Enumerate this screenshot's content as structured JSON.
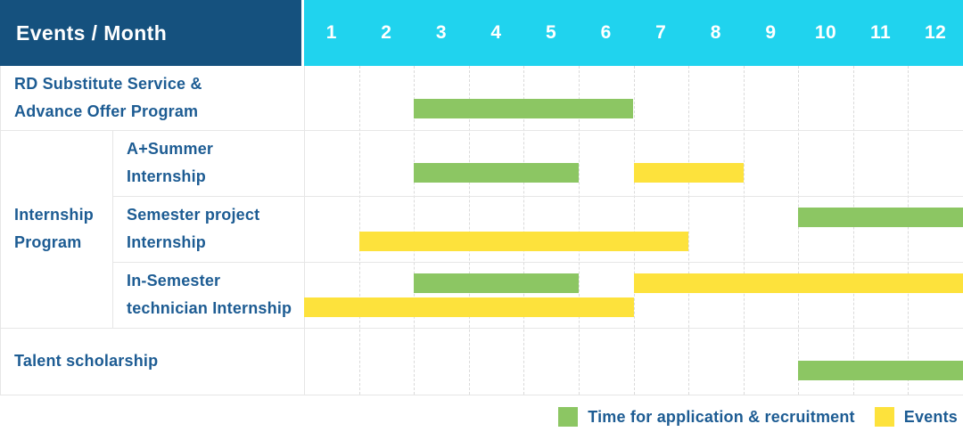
{
  "colors": {
    "header_navy": "#15517E",
    "header_cyan": "#20D3EE",
    "recruitment_green": "#8CC663",
    "event_yellow": "#FDE23C",
    "label_blue": "#1D5C93",
    "grid_gray": "#E6E6E6"
  },
  "header": {
    "title": "Events / Month",
    "months": [
      "1",
      "2",
      "3",
      "4",
      "5",
      "6",
      "7",
      "8",
      "9",
      "10",
      "11",
      "12"
    ]
  },
  "rows": [
    {
      "id": "rd-substitute-service",
      "group": null,
      "label_lines": [
        "RD Substitute Service &",
        "Advance Offer Program"
      ],
      "bars": [
        {
          "type": "recruitment",
          "start_month": 3,
          "end_month": 6,
          "band": "mid"
        }
      ]
    },
    {
      "id": "a-plus-summer-internship",
      "group": "Internship Program",
      "label_lines": [
        "A+Summer",
        "Internship"
      ],
      "bars": [
        {
          "type": "recruitment",
          "start_month": 3,
          "end_month": 5,
          "band": "mid"
        },
        {
          "type": "event",
          "start_month": 7,
          "end_month": 8,
          "band": "mid"
        }
      ]
    },
    {
      "id": "semester-project-internship",
      "group": "Internship Program",
      "label_lines": [
        "Semester project",
        "Internship"
      ],
      "bars": [
        {
          "type": "recruitment",
          "start_month": 10,
          "end_month": 12,
          "band": "top"
        },
        {
          "type": "event",
          "start_month": 2,
          "end_month": 7,
          "band": "bottom"
        }
      ]
    },
    {
      "id": "in-semester-technician-internship",
      "group": "Internship Program",
      "label_lines": [
        "In-Semester",
        "technician Internship"
      ],
      "bars": [
        {
          "type": "recruitment",
          "start_month": 3,
          "end_month": 5,
          "band": "top"
        },
        {
          "type": "event",
          "start_month": 7,
          "end_month": 12,
          "band": "top"
        },
        {
          "type": "event",
          "start_month": 1,
          "end_month": 6,
          "band": "bottom"
        }
      ]
    },
    {
      "id": "talent-scholarship",
      "group": null,
      "label_lines": [
        "Talent scholarship"
      ],
      "bars": [
        {
          "type": "recruitment",
          "start_month": 10,
          "end_month": 12,
          "band": "mid"
        }
      ]
    }
  ],
  "legend": {
    "items": [
      {
        "id": "recruitment",
        "label": "Time for application & recruitment",
        "color": "#8CC663"
      },
      {
        "id": "events",
        "label": "Events",
        "color": "#FDE23C"
      }
    ]
  },
  "chart_data": {
    "type": "bar",
    "subtype": "gantt",
    "title": "Events / Month",
    "xlabel": "Month",
    "x_ticks": [
      1,
      2,
      3,
      4,
      5,
      6,
      7,
      8,
      9,
      10,
      11,
      12
    ],
    "xlim": [
      1,
      12
    ],
    "grid": "vertical-dashed",
    "legend_position": "bottom-right",
    "legend": [
      {
        "label": "Time for application & recruitment",
        "color": "#8CC663"
      },
      {
        "label": "Events",
        "color": "#FDE23C"
      }
    ],
    "series": [
      {
        "row": "RD Substitute Service & Advance Offer Program",
        "group": null,
        "spans": [
          {
            "category": "Time for application & recruitment",
            "start_month": 3,
            "end_month": 6
          }
        ]
      },
      {
        "row": "A+Summer Internship",
        "group": "Internship Program",
        "spans": [
          {
            "category": "Time for application & recruitment",
            "start_month": 3,
            "end_month": 5
          },
          {
            "category": "Events",
            "start_month": 7,
            "end_month": 8
          }
        ]
      },
      {
        "row": "Semester project Internship",
        "group": "Internship Program",
        "spans": [
          {
            "category": "Time for application & recruitment",
            "start_month": 10,
            "end_month": 12
          },
          {
            "category": "Events",
            "start_month": 2,
            "end_month": 7
          }
        ]
      },
      {
        "row": "In-Semester technician Internship",
        "group": "Internship Program",
        "spans": [
          {
            "category": "Time for application & recruitment",
            "start_month": 3,
            "end_month": 5
          },
          {
            "category": "Events",
            "start_month": 7,
            "end_month": 12
          },
          {
            "category": "Events",
            "start_month": 1,
            "end_month": 6
          }
        ]
      },
      {
        "row": "Talent scholarship",
        "group": null,
        "spans": [
          {
            "category": "Time for application & recruitment",
            "start_month": 10,
            "end_month": 12
          }
        ]
      }
    ]
  }
}
